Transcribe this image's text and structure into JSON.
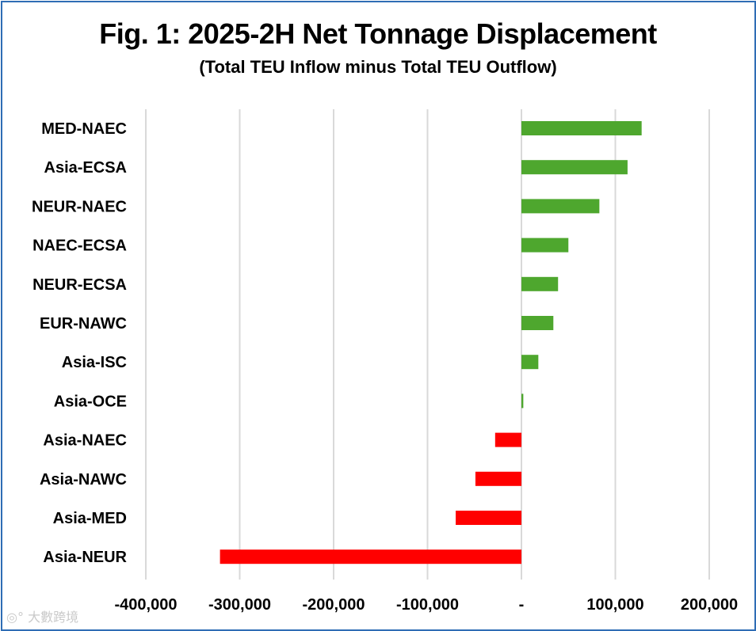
{
  "chart_data": {
    "type": "bar",
    "orientation": "horizontal",
    "title": "Fig. 1: 2025-2H Net Tonnage Displacement",
    "subtitle": "(Total TEU Inflow minus Total TEU Outflow)",
    "categories": [
      "MED-NAEC",
      "Asia-ECSA",
      "NEUR-NAEC",
      "NAEC-ECSA",
      "NEUR-ECSA",
      "EUR-NAWC",
      "Asia-ISC",
      "Asia-OCE",
      "Asia-NAEC",
      "Asia-NAWC",
      "Asia-MED",
      "Asia-NEUR"
    ],
    "values": [
      128000,
      113000,
      83000,
      50000,
      39000,
      34000,
      18000,
      2000,
      -28000,
      -49000,
      -70000,
      -321000
    ],
    "xlim": [
      -400000,
      200000
    ],
    "xticks": [
      -400000,
      -300000,
      -200000,
      -100000,
      0,
      100000,
      200000
    ],
    "xtick_labels": [
      "-400,000",
      "-300,000",
      "-200,000",
      "-100,000",
      "-",
      "100,000",
      "200,000"
    ],
    "grid": true,
    "colors": {
      "positive": "#4ea72e",
      "negative": "#ff0000",
      "grid": "#d9d9d9"
    }
  },
  "watermark": "大數跨境"
}
